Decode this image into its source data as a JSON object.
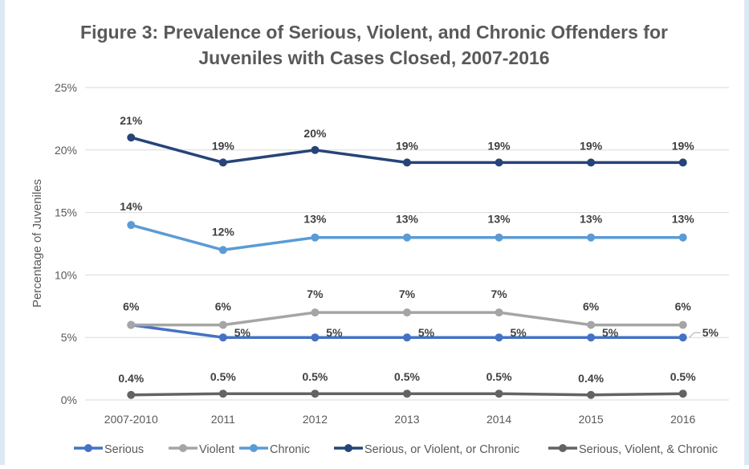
{
  "chart_data": {
    "type": "line",
    "title_line1": "Figure 3: Prevalence of Serious, Violent, and Chronic Offenders for",
    "title_line2": "Juveniles with Cases Closed, 2007-2016",
    "title": "Figure 3: Prevalence of Serious, Violent, and Chronic Offenders for Juveniles with Cases Closed, 2007-2016",
    "xlabel": "",
    "ylabel": "Percentage of Juveniles",
    "categories": [
      "2007-2010",
      "2011",
      "2012",
      "2013",
      "2014",
      "2015",
      "2016"
    ],
    "ylim": [
      0,
      25
    ],
    "yticks": [
      0,
      5,
      10,
      15,
      20,
      25
    ],
    "ytick_labels": [
      "0%",
      "5%",
      "10%",
      "15%",
      "20%",
      "25%"
    ],
    "grid": true,
    "legend_position": "bottom",
    "series": [
      {
        "name": "Serious",
        "color": "#4472c4",
        "values": [
          6,
          5,
          5,
          5,
          5,
          5,
          5
        ],
        "labels": [
          "",
          "5%",
          "5%",
          "5%",
          "5%",
          "5%",
          "5%"
        ]
      },
      {
        "name": "Violent",
        "color": "#a5a5a5",
        "values": [
          6,
          6,
          7,
          7,
          7,
          6,
          6
        ],
        "labels": [
          "6%",
          "6%",
          "7%",
          "7%",
          "7%",
          "6%",
          "6%"
        ]
      },
      {
        "name": "Chronic",
        "color": "#5b9bd5",
        "values": [
          14,
          12,
          13,
          13,
          13,
          13,
          13
        ],
        "labels": [
          "14%",
          "12%",
          "13%",
          "13%",
          "13%",
          "13%",
          "13%"
        ]
      },
      {
        "name": "Serious, or Violent, or Chronic",
        "color": "#264478",
        "values": [
          21,
          19,
          20,
          19,
          19,
          19,
          19
        ],
        "labels": [
          "21%",
          "19%",
          "20%",
          "19%",
          "19%",
          "19%",
          "19%"
        ]
      },
      {
        "name": "Serious, Violent, & Chronic",
        "color": "#636363",
        "values": [
          0.4,
          0.5,
          0.5,
          0.5,
          0.5,
          0.4,
          0.5
        ],
        "labels": [
          "0.4%",
          "0.5%",
          "0.5%",
          "0.5%",
          "0.5%",
          "0.4%",
          "0.5%"
        ]
      }
    ]
  }
}
